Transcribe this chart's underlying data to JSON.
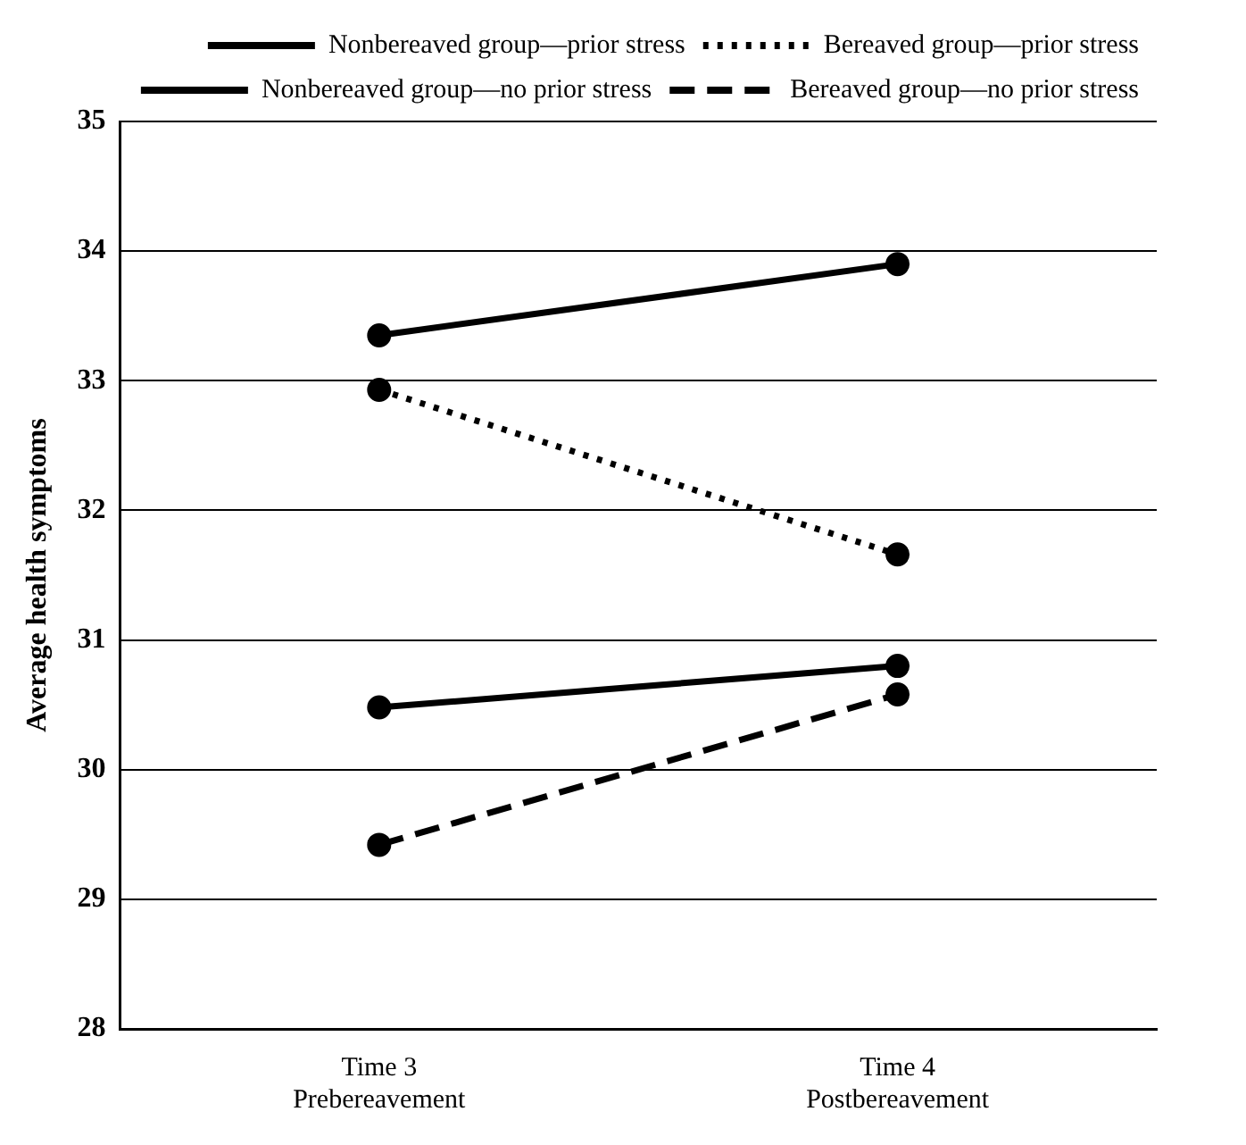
{
  "chart_data": {
    "type": "line",
    "ylabel": "Average health symptoms",
    "categories": [
      "Time 3\nPrebereavement",
      "Time 4\nPostbereavement"
    ],
    "series": [
      {
        "name": "Nonbereaved group—prior stress",
        "color": "#000000",
        "line_style": "solid",
        "values": [
          33.35,
          33.9
        ]
      },
      {
        "name": "Bereaved group—prior stress",
        "color": "#000000",
        "line_style": "dotted",
        "values": [
          32.93,
          31.66
        ]
      },
      {
        "name": "Nonbereaved group—no prior stress",
        "color": "#000000",
        "line_style": "solid",
        "values": [
          30.48,
          30.8
        ]
      },
      {
        "name": "Bereaved group—no prior stress",
        "color": "#000000",
        "line_style": "dashed",
        "values": [
          29.42,
          30.58
        ]
      }
    ],
    "ylim": [
      28,
      35
    ],
    "yticks": [
      28,
      29,
      30,
      31,
      32,
      33,
      34,
      35
    ],
    "grid": "y",
    "legend": "top right",
    "marker": "circle"
  }
}
